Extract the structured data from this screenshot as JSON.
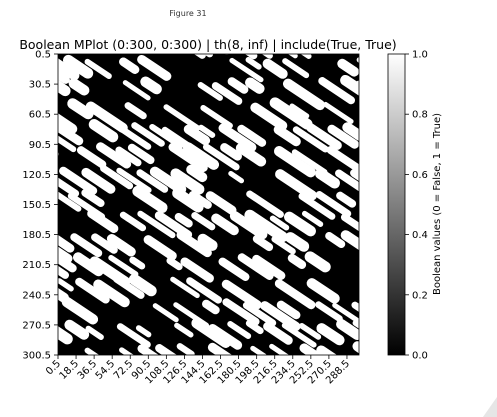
{
  "window": {
    "figure_label": "Figure 31"
  },
  "chart_data": {
    "type": "heatmap",
    "title": "Boolean MPlot (0:300, 0:300) | th(8, inf) | include(True, True)",
    "xlabel": "",
    "ylabel": "",
    "x_range": [
      0.5,
      300.5
    ],
    "y_range": [
      0.5,
      300.5
    ],
    "y_ticks": [
      0.5,
      30.5,
      60.5,
      90.5,
      120.5,
      150.5,
      180.5,
      210.5,
      240.5,
      270.5,
      300.5
    ],
    "y_tick_labels": [
      "0.5",
      "30.5",
      "60.5",
      "90.5",
      "120.5",
      "150.5",
      "180.5",
      "210.5",
      "240.5",
      "270.5",
      "300.5"
    ],
    "x_ticks": [
      0.5,
      18.5,
      36.5,
      54.5,
      72.5,
      90.5,
      108.5,
      126.5,
      144.5,
      162.5,
      180.5,
      198.5,
      216.5,
      234.5,
      252.5,
      270.5,
      288.5
    ],
    "x_tick_labels": [
      "0.5",
      "18.5",
      "36.5",
      "54.5",
      "72.5",
      "90.5",
      "108.5",
      "126.5",
      "144.5",
      "162.5",
      "180.5",
      "198.5",
      "216.5",
      "234.5",
      "252.5",
      "270.5",
      "288.5"
    ],
    "value_range": [
      0,
      1
    ],
    "colormap": "gray",
    "colors": {
      "false": "#000000",
      "true": "#ffffff"
    },
    "colorbar": {
      "label": "Boolean values (0 = False, 1 = True)",
      "ticks": [
        0.0,
        0.2,
        0.4,
        0.6,
        0.8,
        1.0
      ],
      "tick_labels": [
        "0.0",
        "0.2",
        "0.4",
        "0.6",
        "0.8",
        "1.0"
      ]
    },
    "grid": false
  }
}
